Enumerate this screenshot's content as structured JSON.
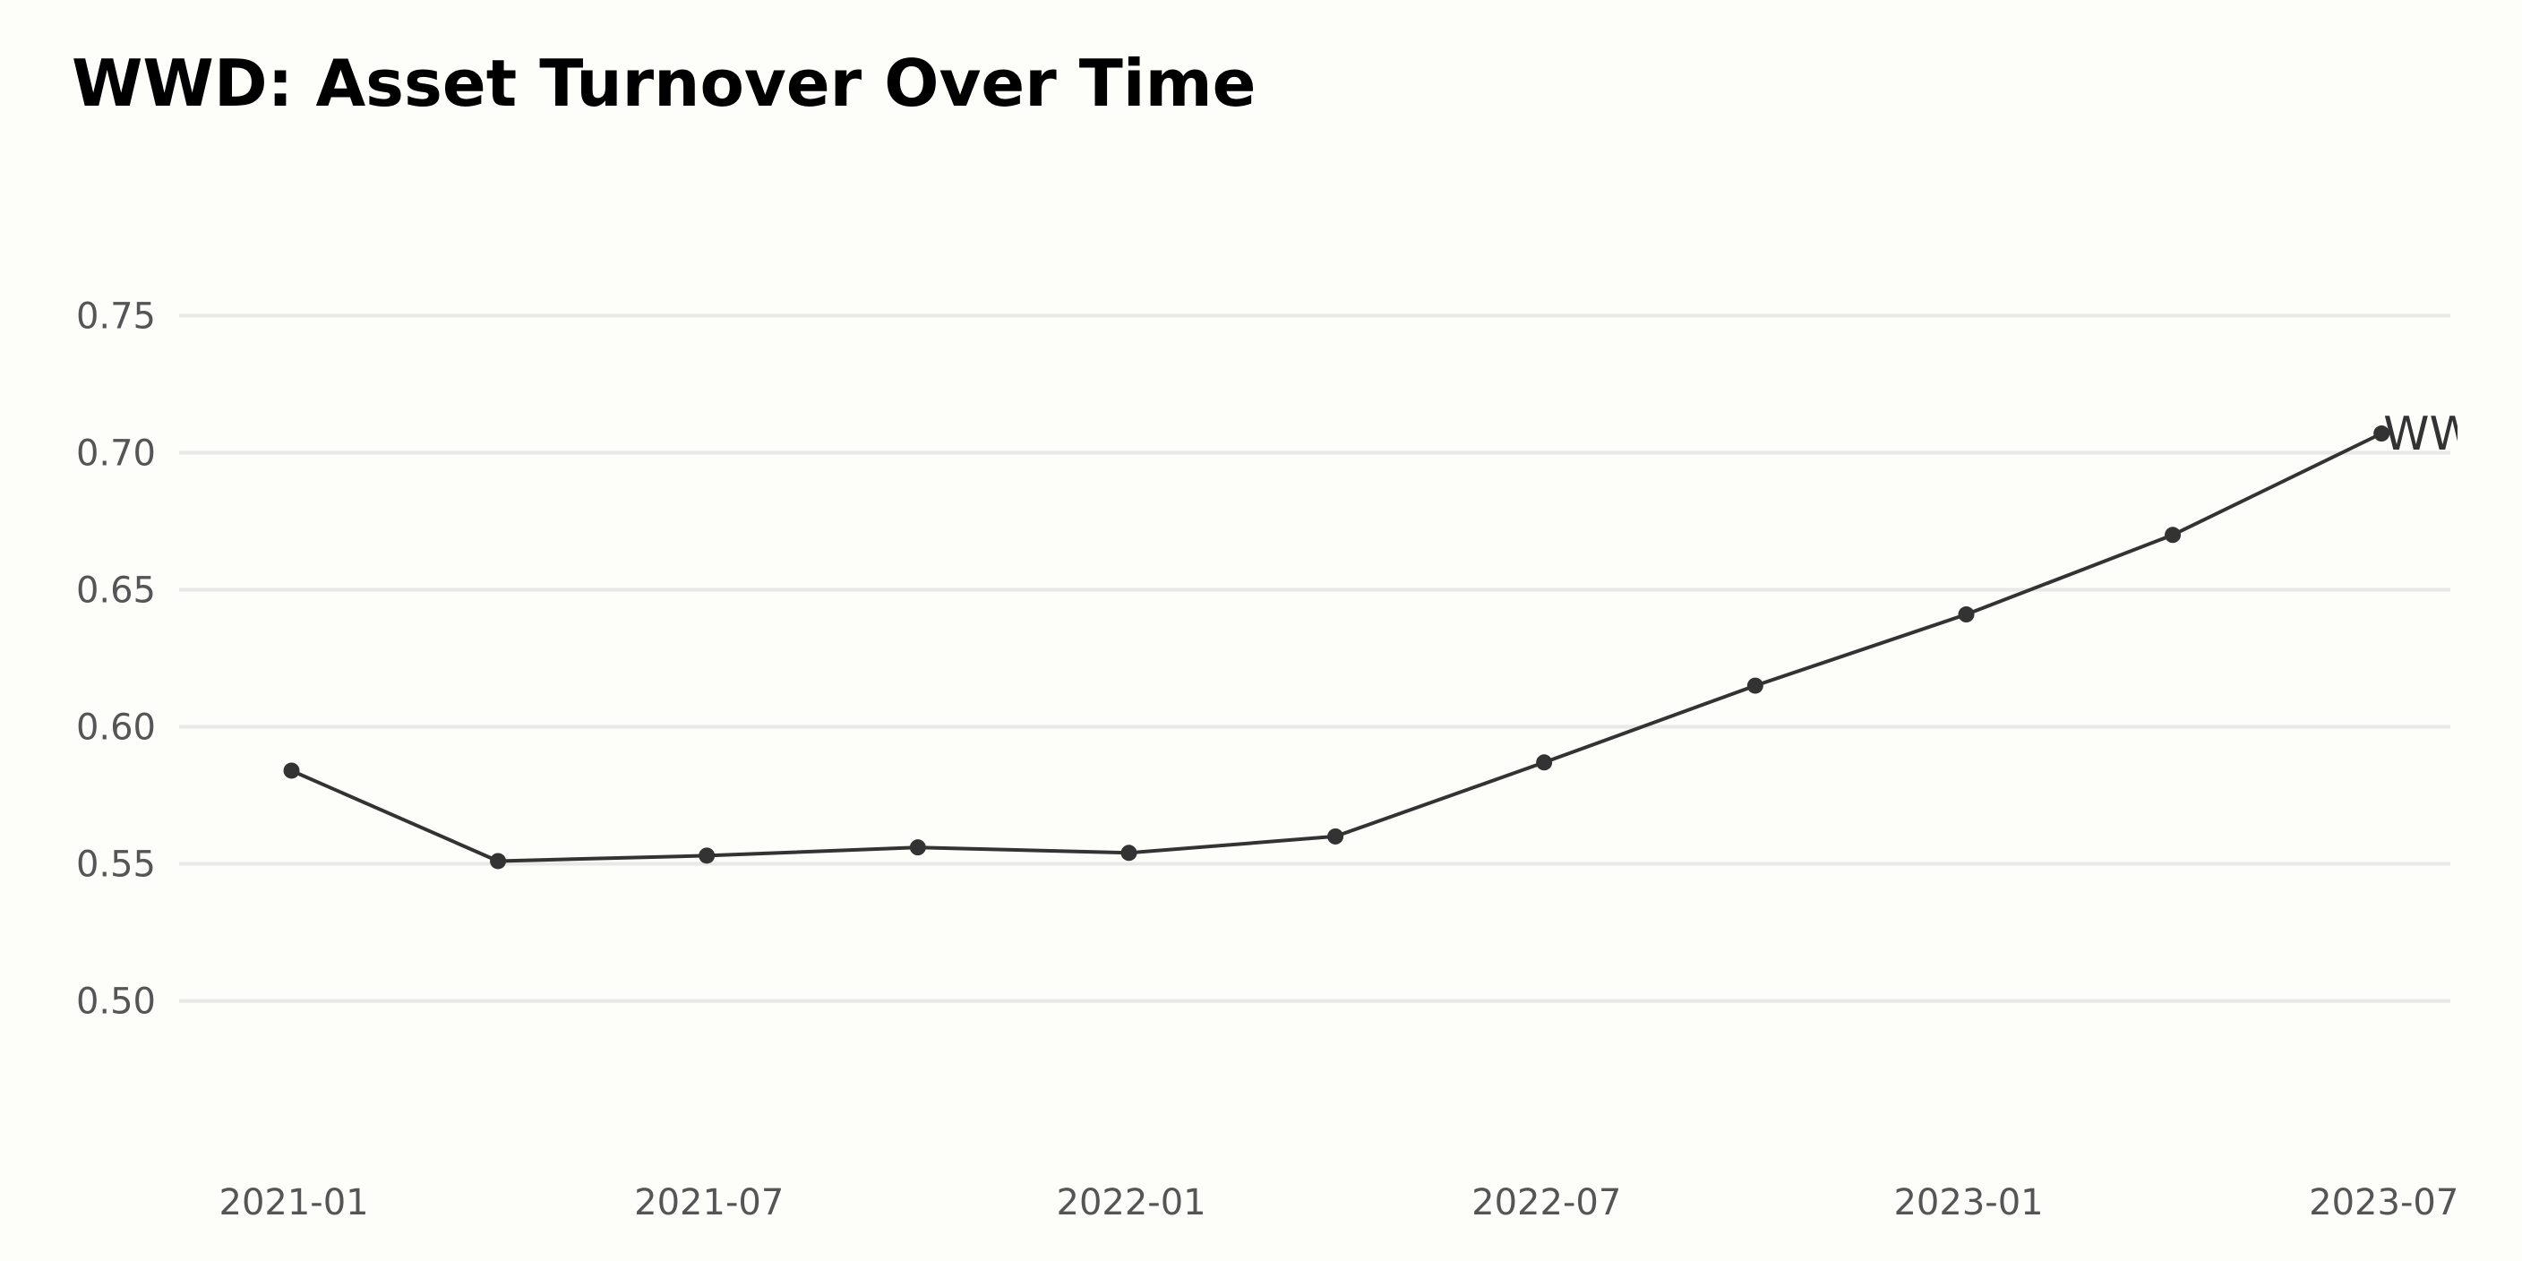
{
  "chart_data": {
    "type": "line",
    "title": "WWD: Asset Turnover Over Time",
    "xlabel": "",
    "ylabel": "",
    "x": [
      "2020-12-31",
      "2021-03-31",
      "2021-06-30",
      "2021-09-30",
      "2021-12-31",
      "2022-03-31",
      "2022-06-30",
      "2022-09-30",
      "2022-12-31",
      "2023-03-31",
      "2023-06-30"
    ],
    "series": [
      {
        "name": "WWD",
        "values": [
          0.584,
          0.551,
          0.553,
          0.556,
          0.554,
          0.56,
          0.587,
          0.615,
          0.641,
          0.67,
          0.707
        ]
      }
    ],
    "x_tick_labels": [
      "2021-01",
      "2021-07",
      "2022-01",
      "2022-07",
      "2023-01",
      "2023-07"
    ],
    "x_tick_dates": [
      "2021-01-01",
      "2021-07-01",
      "2022-01-01",
      "2022-07-01",
      "2023-01-01",
      "2023-07-01"
    ],
    "y_ticks": [
      0.5,
      0.55,
      0.6,
      0.65,
      0.7,
      0.75
    ],
    "y_tick_labels": [
      "0.50",
      "0.55",
      "0.60",
      "0.65",
      "0.70",
      "0.75"
    ],
    "xlim": [
      "2020-11-12",
      "2023-07-30"
    ],
    "ylim": [
      0.46,
      0.79
    ],
    "grid": "horizontal",
    "legend": "none",
    "end_label": "WWD",
    "colors": {
      "line": "#333333",
      "grid": "#e8e8e6",
      "background": "#fdfdfa",
      "tick_text": "#555555"
    }
  }
}
